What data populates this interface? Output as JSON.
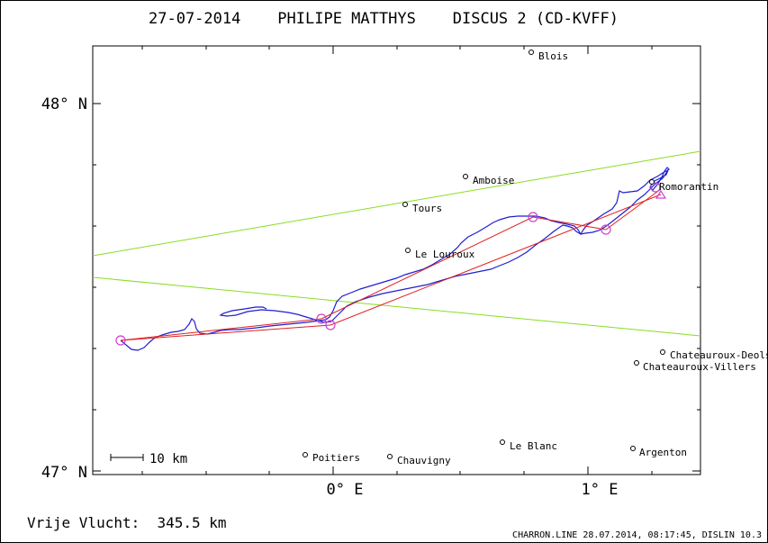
{
  "title": "27-07-2014    PHILIPE MATTHYS    DISCUS 2 (CD-KVFF)",
  "axes": {
    "lat_labels": [
      "48° N",
      "47° N"
    ],
    "lon_labels": [
      "0° E",
      "1° E"
    ]
  },
  "scale_bar_label": "10 km",
  "places": [
    {
      "name": "Blois"
    },
    {
      "name": "Amboise"
    },
    {
      "name": "Tours"
    },
    {
      "name": "Le Louroux"
    },
    {
      "name": "Romorantin"
    },
    {
      "name": "Chateauroux-Deols"
    },
    {
      "name": "Chateauroux-Villers"
    },
    {
      "name": "Poitiers"
    },
    {
      "name": "Chauvigny"
    },
    {
      "name": "Le Blanc"
    },
    {
      "name": "Argenton"
    }
  ],
  "footer": {
    "distance_label": "Vrije Vlucht:  345.5 km",
    "credit": "CHARRON.LINE 28.07.2014, 08:17:45, DISLIN 10.3"
  },
  "colors": {
    "track": "#1f1fd0",
    "task_line": "#e02020",
    "sector_line": "#88dd22",
    "turnpoint": "#d040d0",
    "frame": "#000000"
  }
}
